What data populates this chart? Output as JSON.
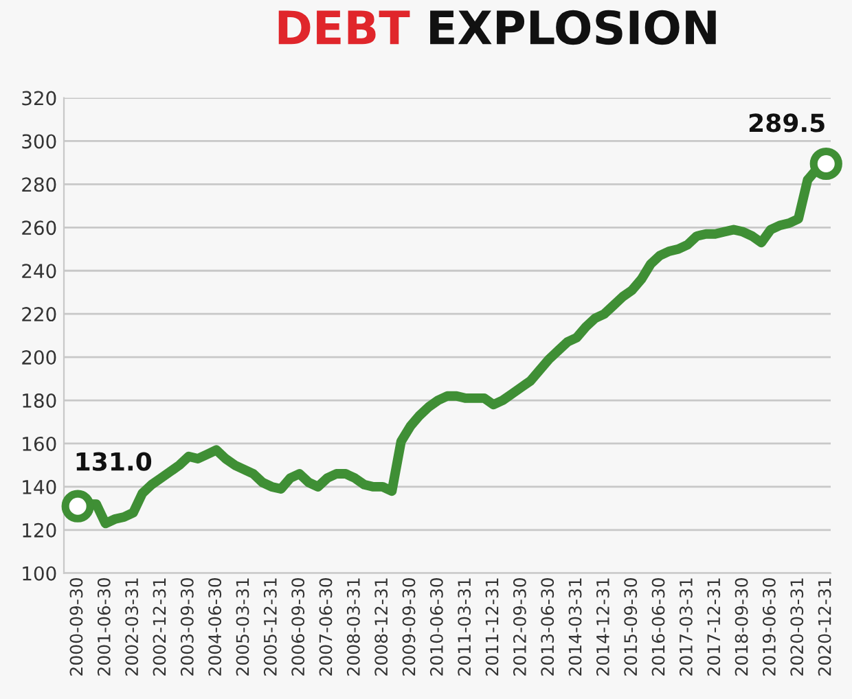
{
  "chart_data": {
    "type": "line",
    "title": "DEBT EXPLOSION",
    "categories": [
      "2000-09-30",
      null,
      null,
      "2001-06-30",
      null,
      null,
      "2002-03-31",
      null,
      null,
      "2002-12-31",
      null,
      null,
      "2003-09-30",
      null,
      null,
      "2004-06-30",
      null,
      null,
      "2005-03-31",
      null,
      null,
      "2005-12-31",
      null,
      null,
      "2006-09-30",
      null,
      null,
      "2007-06-30",
      null,
      null,
      "2008-03-31",
      null,
      null,
      "2008-12-31",
      null,
      null,
      "2009-09-30",
      null,
      null,
      "2010-06-30",
      null,
      null,
      "2011-03-31",
      null,
      null,
      "2011-12-31",
      null,
      null,
      "2012-09-30",
      null,
      null,
      "2013-06-30",
      null,
      null,
      "2014-03-31",
      null,
      null,
      "2014-12-31",
      null,
      null,
      "2015-09-30",
      null,
      null,
      "2016-06-30",
      null,
      null,
      "2017-03-31",
      null,
      null,
      "2017-12-31",
      null,
      null,
      "2018-09-30",
      null,
      null,
      "2019-06-30",
      null,
      null,
      "2020-03-31",
      null,
      null,
      "2020-12-31"
    ],
    "series": [
      {
        "color": "#3f8f35",
        "values": [
          131.0,
          132,
          132,
          123,
          125,
          126,
          128,
          137,
          141,
          144,
          147,
          150,
          154,
          153,
          155,
          157,
          153,
          150,
          148,
          146,
          142,
          140,
          139,
          144,
          146,
          142,
          140,
          144,
          146,
          146,
          144,
          141,
          140,
          140,
          138,
          161,
          168,
          173,
          177,
          180,
          182,
          182,
          181,
          181,
          181,
          178,
          180,
          183,
          186,
          189,
          194,
          199,
          203,
          207,
          209,
          214,
          218,
          220,
          224,
          228,
          231,
          236,
          243,
          247,
          249,
          250,
          252,
          256,
          257,
          257,
          258,
          259,
          258,
          256,
          253,
          259,
          261,
          262,
          264,
          282,
          287,
          289.5
        ]
      }
    ],
    "ylim": [
      100,
      320
    ],
    "yticks": [
      100,
      120,
      140,
      160,
      180,
      200,
      220,
      240,
      260,
      280,
      300,
      320
    ],
    "grid": "y",
    "marker": "none",
    "line_style": "solid",
    "legend": false,
    "annotations": [
      {
        "text": "131.0",
        "x": "2000-09-30",
        "y": 131.0
      },
      {
        "text": "289.5",
        "x": "2020-12-31",
        "y": 289.5
      }
    ]
  }
}
